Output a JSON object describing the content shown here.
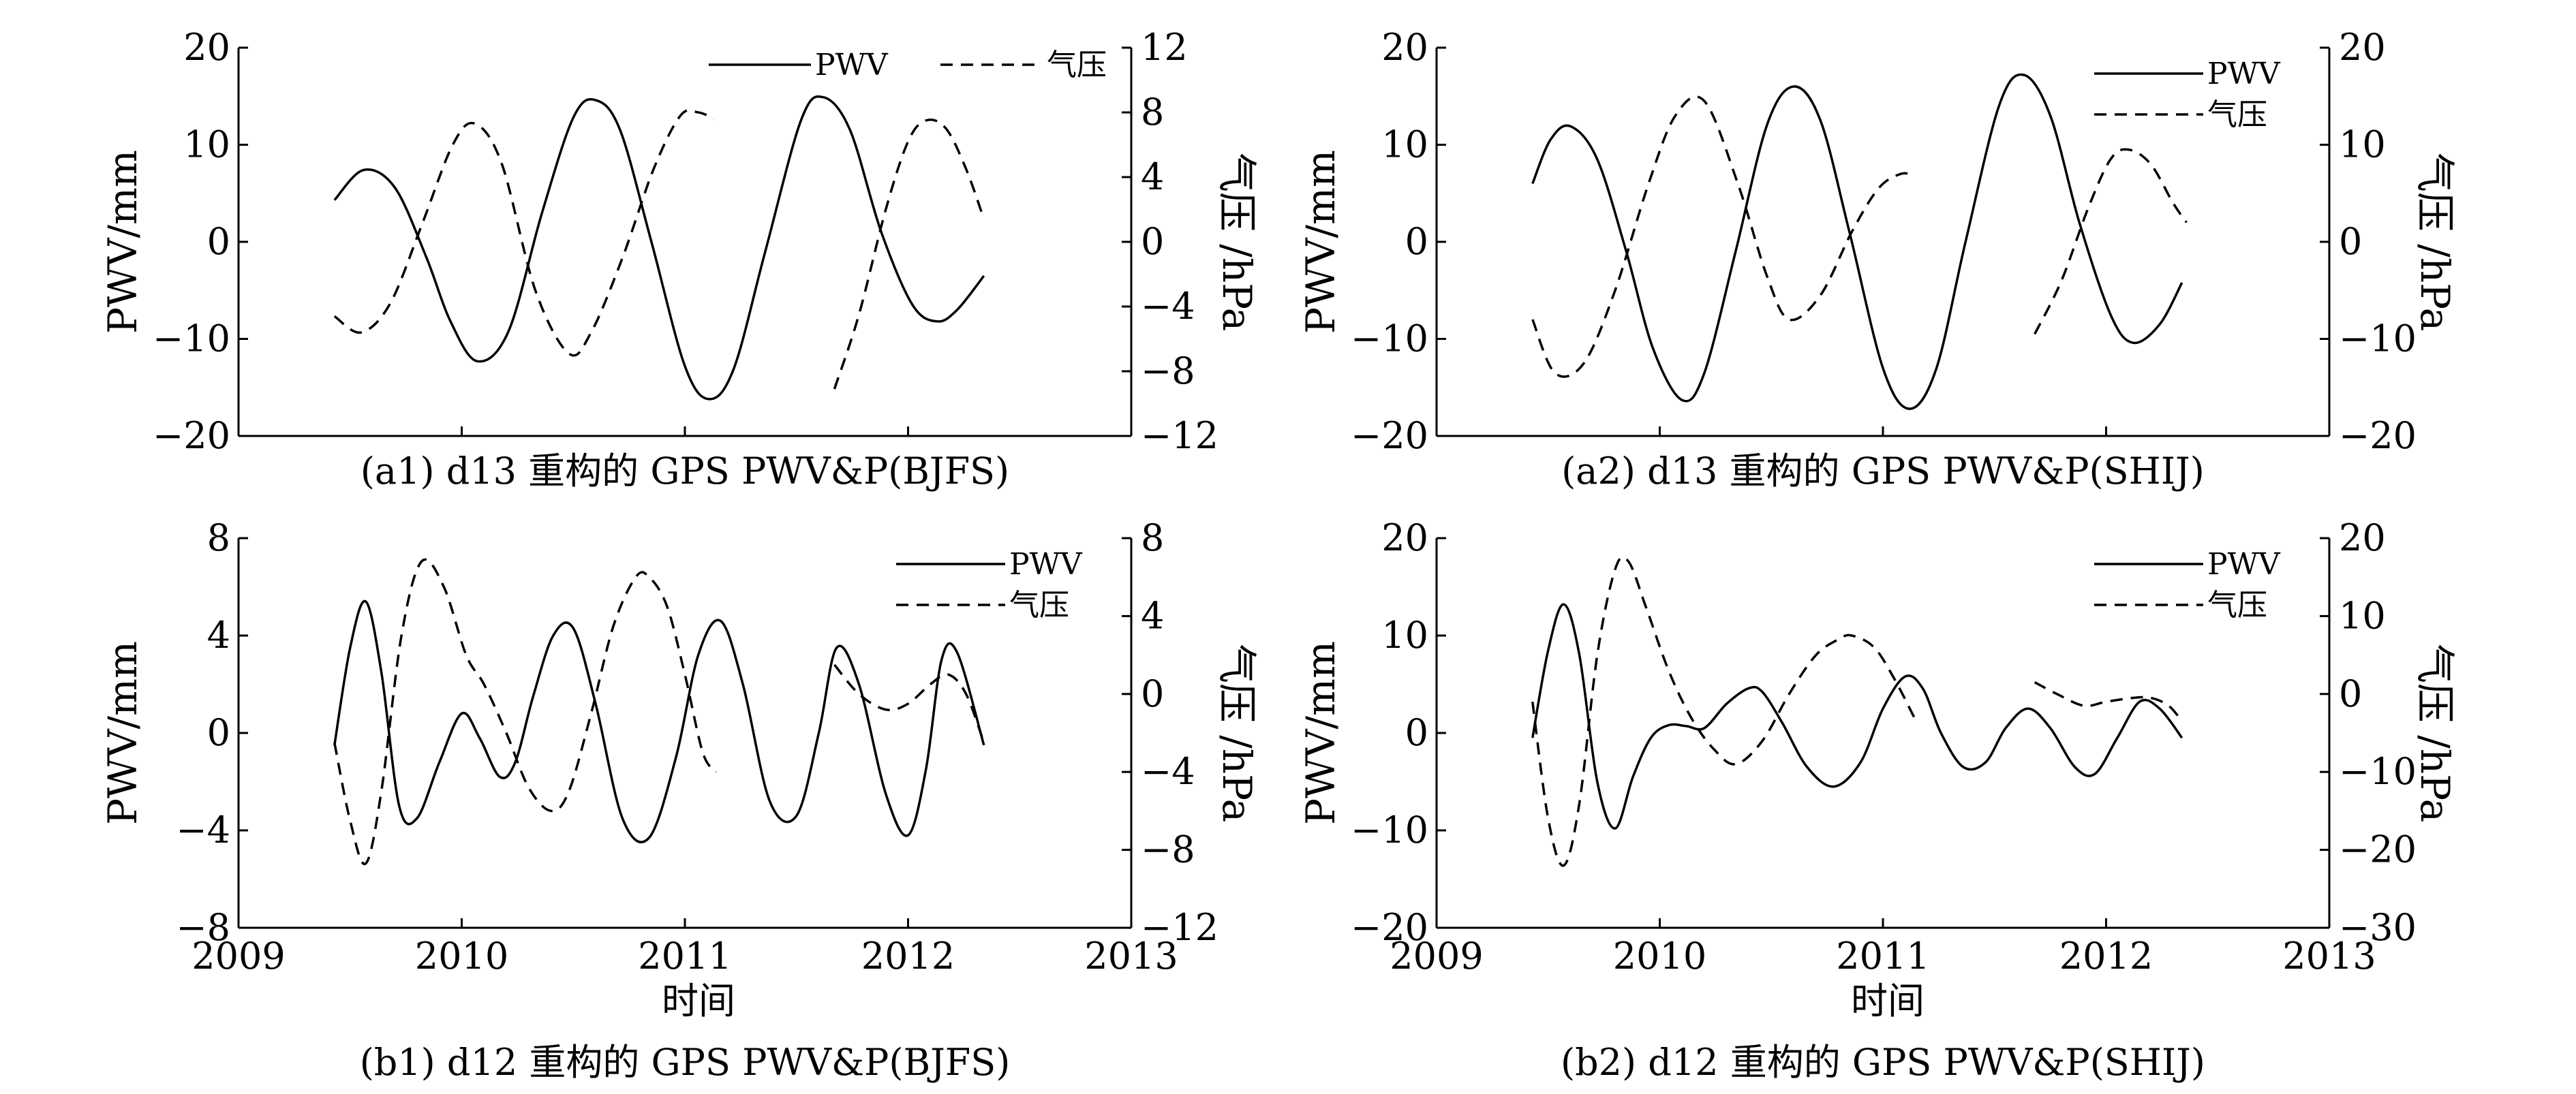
{
  "x_axis_label": "时间",
  "chart_data": [
    {
      "id": "a1",
      "type": "line",
      "caption": "(a1) d13 重构的 GPS PWV&P(BJFS)",
      "ylabel_left": "PWV/mm",
      "ylabel_right": "气压 /hPa",
      "xlim": [
        2009,
        2013
      ],
      "ylim_left": [
        -20,
        20
      ],
      "yticks_left": [
        "20",
        "10",
        "0",
        "−10",
        "−20"
      ],
      "ylim_right": [
        -12,
        12
      ],
      "yticks_right": [
        "12",
        "8",
        "4",
        "0",
        "−4",
        "−8",
        "−12"
      ],
      "show_x_ticklabels": false,
      "legend_position": "top-right-horizontal",
      "series": [
        {
          "name": "PWV",
          "axis": "left",
          "style": "solid",
          "x": [
            2009.43,
            2009.56,
            2009.7,
            2009.84,
            2009.95,
            2010.07,
            2010.21,
            2010.36,
            2010.5,
            2010.6,
            2010.71,
            2010.85,
            2011.0,
            2011.11,
            2011.22,
            2011.36,
            2011.52,
            2011.62,
            2011.74,
            2011.88,
            2012.02,
            2012.13,
            2012.22,
            2012.34
          ],
          "y": [
            4.3,
            7.4,
            5.6,
            -1.5,
            -8.2,
            -12.3,
            -9.2,
            3.0,
            12.8,
            14.6,
            11.5,
            0.0,
            -12.8,
            -16.2,
            -13.0,
            -1.0,
            12.5,
            14.9,
            11.5,
            1.0,
            -6.5,
            -8.2,
            -7.0,
            -3.5
          ]
        },
        {
          "name": "气压",
          "axis": "right",
          "style": "dashed",
          "segments": [
            {
              "x": [
                2009.43,
                2009.55,
                2009.68,
                2009.82,
                2009.96,
                2010.06,
                2010.18,
                2010.33,
                2010.48,
                2010.58,
                2010.72,
                2010.86,
                2010.98,
                2011.06,
                2011.13
              ],
              "y": [
                -4.6,
                -5.6,
                -3.8,
                1.0,
                6.0,
                7.3,
                4.8,
                -3.0,
                -6.9,
                -5.6,
                -1.0,
                4.5,
                7.8,
                8.0,
                7.6
              ]
            },
            {
              "x": [
                2011.67,
                2011.78,
                2011.9,
                2012.0,
                2012.08,
                2012.17,
                2012.26,
                2012.34
              ],
              "y": [
                -9.1,
                -4.5,
                2.0,
                6.2,
                7.5,
                7.0,
                4.5,
                1.4
              ]
            }
          ]
        }
      ]
    },
    {
      "id": "a2",
      "type": "line",
      "caption": "(a2) d13 重构的 GPS PWV&P(SHIJ)",
      "ylabel_left": "PWV/mm",
      "ylabel_right": "气压 /hPa",
      "xlim": [
        2009,
        2013
      ],
      "ylim_left": [
        -20,
        20
      ],
      "yticks_left": [
        "20",
        "10",
        "0",
        "−10",
        "−20"
      ],
      "ylim_right": [
        -20,
        20
      ],
      "yticks_right": [
        "20",
        "10",
        "0",
        "−10",
        "−20"
      ],
      "show_x_ticklabels": false,
      "legend_position": "top-right-stacked",
      "series": [
        {
          "name": "PWV",
          "axis": "left",
          "style": "solid",
          "x": [
            2009.43,
            2009.51,
            2009.6,
            2009.72,
            2009.85,
            2009.97,
            2010.1,
            2010.2,
            2010.34,
            2010.48,
            2010.6,
            2010.72,
            2010.85,
            2011.0,
            2011.12,
            2011.24,
            2011.37,
            2011.52,
            2011.63,
            2011.75,
            2011.88,
            2012.02,
            2012.12,
            2012.24,
            2012.34
          ],
          "y": [
            6.0,
            10.5,
            11.9,
            8.5,
            -1.0,
            -11.0,
            -16.3,
            -13.5,
            -1.0,
            12.0,
            16.0,
            12.5,
            1.0,
            -13.0,
            -17.2,
            -13.0,
            0.0,
            14.0,
            17.2,
            13.0,
            2.0,
            -7.5,
            -10.4,
            -8.5,
            -4.2
          ]
        },
        {
          "name": "气压",
          "axis": "right",
          "style": "dashed",
          "segments": [
            {
              "x": [
                2009.43,
                2009.53,
                2009.66,
                2009.8,
                2009.95,
                2010.07,
                2010.2,
                2010.35,
                2010.48,
                2010.58,
                2010.72,
                2010.86,
                2010.98,
                2011.08,
                2011.14
              ],
              "y": [
                -8.0,
                -13.5,
                -12.5,
                -5.0,
                6.0,
                13.0,
                14.5,
                6.0,
                -3.5,
                -8.0,
                -5.5,
                1.0,
                5.5,
                7.0,
                6.8
              ]
            },
            {
              "x": [
                2011.68,
                2011.8,
                2011.92,
                2012.02,
                2012.1,
                2012.2,
                2012.3,
                2012.36
              ],
              "y": [
                -9.5,
                -4.0,
                3.5,
                8.5,
                9.5,
                8.0,
                4.0,
                2.0
              ]
            }
          ]
        }
      ]
    },
    {
      "id": "b1",
      "type": "line",
      "caption": "(b1) d12 重构的 GPS PWV&P(BJFS)",
      "ylabel_left": "PWV/mm",
      "ylabel_right": "气压 /hPa",
      "xlim": [
        2009,
        2013
      ],
      "xticks": [
        "2009",
        "2010",
        "2011",
        "2012",
        "2013"
      ],
      "ylim_left": [
        -8,
        8
      ],
      "yticks_left": [
        "8",
        "4",
        "0",
        "−4",
        "−8"
      ],
      "ylim_right": [
        -12,
        8
      ],
      "yticks_right": [
        "8",
        "4",
        "0",
        "−4",
        "−8",
        "−12"
      ],
      "show_x_ticklabels": true,
      "legend_position": "top-right-stacked",
      "series": [
        {
          "name": "PWV",
          "axis": "left",
          "style": "solid",
          "x": [
            2009.43,
            2009.5,
            2009.57,
            2009.64,
            2009.72,
            2009.8,
            2009.9,
            2010.0,
            2010.08,
            2010.17,
            2010.24,
            2010.32,
            2010.41,
            2010.5,
            2010.6,
            2010.72,
            2010.84,
            2010.96,
            2011.06,
            2011.16,
            2011.26,
            2011.38,
            2011.5,
            2011.6,
            2011.68,
            2011.78,
            2011.9,
            2012.0,
            2012.08,
            2012.15,
            2012.22,
            2012.34
          ],
          "y": [
            -0.5,
            3.5,
            5.4,
            2.5,
            -3.0,
            -3.5,
            -1.2,
            0.8,
            -0.2,
            -1.8,
            -1.2,
            1.5,
            4.0,
            4.3,
            1.2,
            -3.5,
            -4.3,
            -1.0,
            3.2,
            4.6,
            2.0,
            -2.8,
            -3.4,
            0.0,
            3.5,
            2.0,
            -2.5,
            -4.2,
            -1.5,
            3.0,
            3.3,
            -0.5
          ]
        },
        {
          "name": "气压",
          "axis": "right",
          "style": "dashed",
          "segments": [
            {
              "x": [
                2009.43,
                2009.5,
                2009.57,
                2009.64,
                2009.73,
                2009.82,
                2009.92,
                2010.02,
                2010.1,
                2010.2,
                2010.3,
                2010.4,
                2010.48,
                2010.58,
                2010.68,
                2010.78,
                2010.84,
                2010.92,
                2011.0,
                2011.08,
                2011.14
              ],
              "y": [
                -2.5,
                -6.5,
                -8.7,
                -5.0,
                3.0,
                6.8,
                5.5,
                2.0,
                0.5,
                -2.0,
                -4.8,
                -6.0,
                -5.0,
                -1.0,
                3.5,
                6.0,
                6.0,
                4.5,
                1.0,
                -3.0,
                -4.0
              ]
            },
            {
              "x": [
                2011.67,
                2011.78,
                2011.9,
                2012.0,
                2012.1,
                2012.18,
                2012.26,
                2012.34
              ],
              "y": [
                1.5,
                0.0,
                -0.8,
                -0.5,
                0.5,
                1.0,
                0.0,
                -2.5
              ]
            }
          ]
        }
      ]
    },
    {
      "id": "b2",
      "type": "line",
      "caption": "(b2) d12 重构的 GPS PWV&P(SHIJ)",
      "ylabel_left": "PWV/mm",
      "ylabel_right": "气压 /hPa",
      "xlim": [
        2009,
        2013
      ],
      "xticks": [
        "2009",
        "2010",
        "2011",
        "2012",
        "2013"
      ],
      "ylim_left": [
        -20,
        20
      ],
      "yticks_left": [
        "20",
        "10",
        "0",
        "−10",
        "−20"
      ],
      "ylim_right": [
        -30,
        20
      ],
      "yticks_right": [
        "20",
        "10",
        "0",
        "−10",
        "−20",
        "−30"
      ],
      "show_x_ticklabels": true,
      "legend_position": "top-right-stacked",
      "series": [
        {
          "name": "PWV",
          "axis": "left",
          "style": "solid",
          "x": [
            2009.43,
            2009.5,
            2009.57,
            2009.64,
            2009.72,
            2009.8,
            2009.88,
            2009.96,
            2010.04,
            2010.12,
            2010.2,
            2010.3,
            2010.4,
            2010.46,
            2010.55,
            2010.66,
            2010.78,
            2010.9,
            2011.0,
            2011.1,
            2011.18,
            2011.26,
            2011.36,
            2011.46,
            2011.55,
            2011.65,
            2011.75,
            2011.86,
            2011.95,
            2012.05,
            2012.15,
            2012.24,
            2012.34
          ],
          "y": [
            -0.5,
            8.5,
            13.2,
            8.0,
            -5.0,
            -9.8,
            -4.5,
            -0.5,
            0.8,
            0.7,
            0.5,
            3.0,
            4.6,
            4.2,
            1.0,
            -3.5,
            -5.5,
            -3.0,
            2.5,
            5.8,
            4.5,
            0.0,
            -3.5,
            -3.0,
            0.5,
            2.5,
            0.5,
            -3.5,
            -4.2,
            -0.5,
            3.2,
            2.5,
            -0.5
          ]
        },
        {
          "name": "气压",
          "axis": "right",
          "style": "dashed",
          "segments": [
            {
              "x": [
                2009.43,
                2009.5,
                2009.57,
                2009.64,
                2009.72,
                2009.8,
                2009.86,
                2009.94,
                2010.04,
                2010.14,
                2010.24,
                2010.34,
                2010.46,
                2010.58,
                2010.7,
                2010.8,
                2010.86,
                2010.96,
                2011.05,
                2011.14
              ],
              "y": [
                -1.0,
                -16.0,
                -22.0,
                -14.0,
                5.0,
                16.0,
                17.0,
                11.0,
                3.0,
                -3.0,
                -7.0,
                -9.0,
                -6.0,
                0.0,
                5.0,
                7.0,
                7.5,
                6.0,
                2.0,
                -3.0
              ]
            },
            {
              "x": [
                2011.68,
                2011.78,
                2011.9,
                2012.0,
                2012.12,
                2012.2,
                2012.28,
                2012.34
              ],
              "y": [
                1.5,
                0.0,
                -1.5,
                -1.0,
                -0.5,
                -0.5,
                -1.5,
                -3.5
              ]
            }
          ]
        }
      ]
    }
  ]
}
